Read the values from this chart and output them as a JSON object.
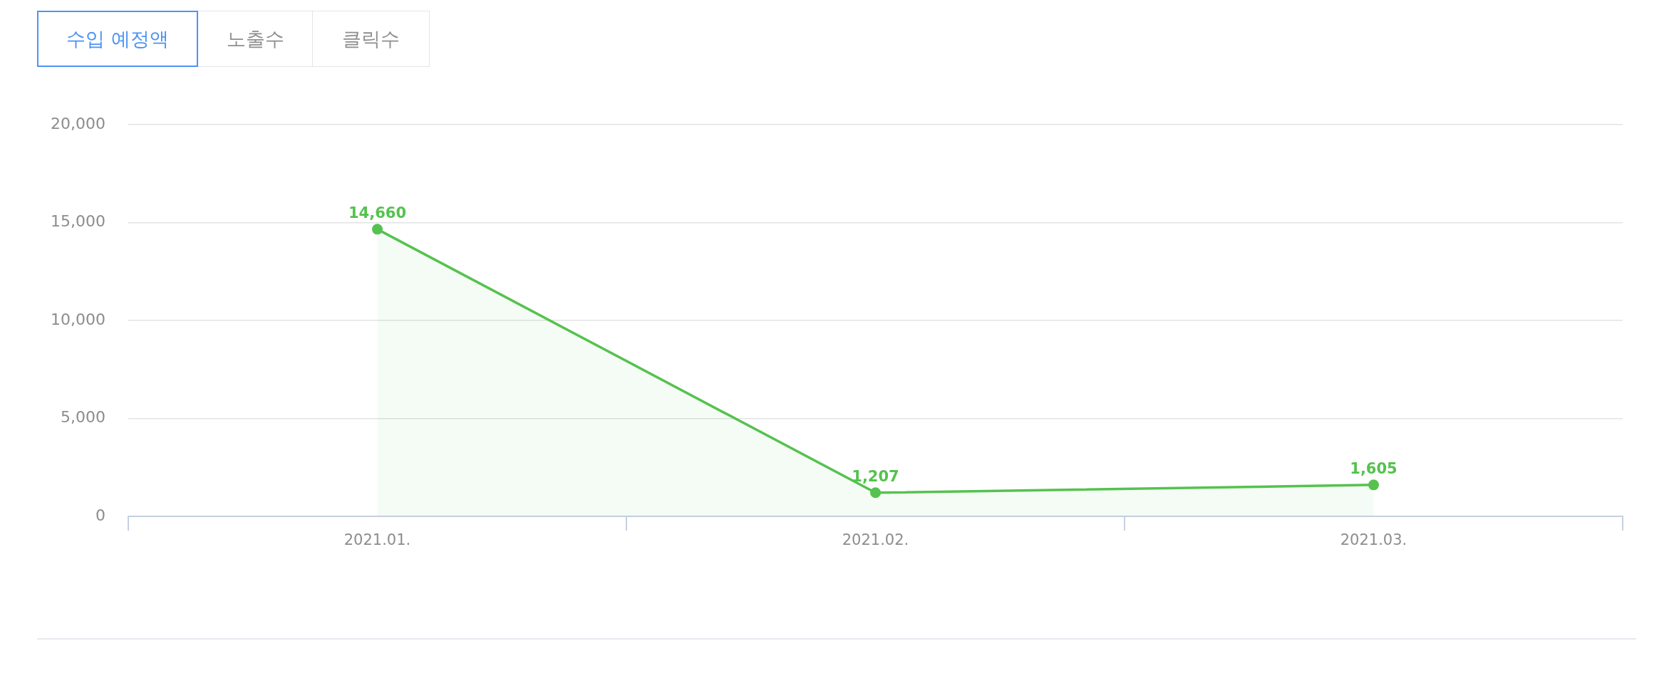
{
  "chart_data": {
    "type": "area",
    "title": "수입 예정액",
    "annotations": [
      "노출수",
      "클릭수"
    ],
    "categories": [
      "2021.01.",
      "2021.02.",
      "2021.03."
    ],
    "values": [
      14660,
      1207,
      1605
    ],
    "color": "#55c24f",
    "value_labels": [
      "14,660",
      "1,207",
      "1,605"
    ],
    "ylim": [
      0,
      20000
    ],
    "yticks": [
      0,
      {
        "value": 5000,
        "label": "5,000"
      },
      {
        "value": 10000,
        "label": "10,000"
      },
      {
        "value": 15000,
        "label": "15,000"
      },
      {
        "value": 20000,
        "label": "20,000"
      }
    ],
    "grid": "y",
    "marker": "circle"
  }
}
